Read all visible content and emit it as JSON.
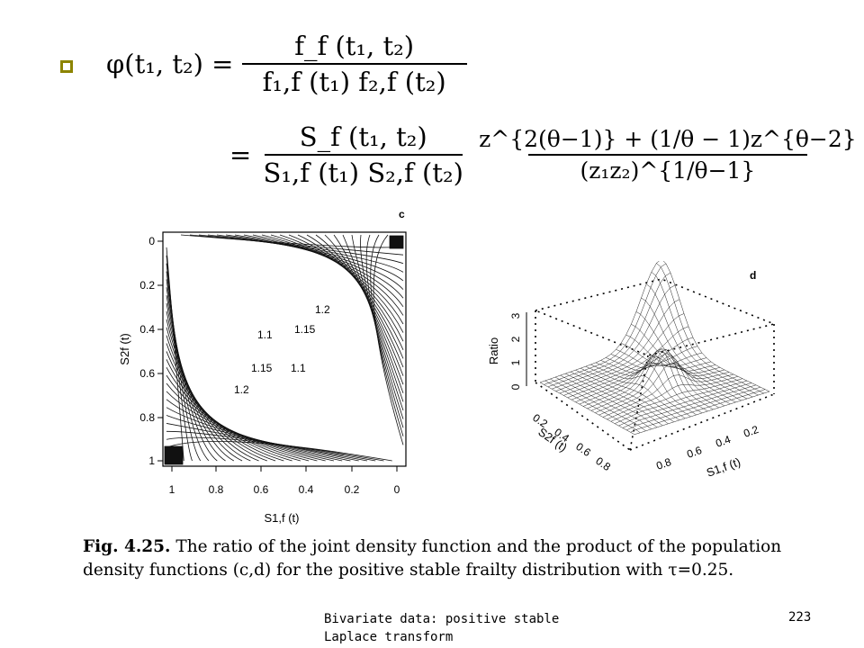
{
  "formula": {
    "lhs": "φ(t₁, t₂) =",
    "line1_num": "f_f (t₁, t₂)",
    "line1_den": "f₁,f (t₁) f₂,f (t₂)",
    "eq2": "=",
    "line2_num": "S_f (t₁, t₂)",
    "line2_den": "S₁,f (t₁) S₂,f (t₂)",
    "line2b_num": "z^{2(θ−1)} + (1/θ − 1)z^{θ−2}",
    "line2b_den": "(z₁z₂)^{1/θ−1}"
  },
  "contour_plot": {
    "panel_label": "c",
    "x_axis_label": "S1,f (t)",
    "y_axis_label": "S2f (t)",
    "x_ticks": [
      "1",
      "0.8",
      "0.6",
      "0.4",
      "0.2",
      "0"
    ],
    "y_ticks": [
      "0",
      "0.2",
      "0.4",
      "0.6",
      "0.8",
      "1"
    ],
    "contour_labels": [
      "1.2",
      "1.15",
      "1.1",
      "1.15",
      "1.1",
      "1.2"
    ]
  },
  "surface_plot": {
    "panel_label": "d",
    "z_axis_label": "Ratio",
    "z_ticks": [
      "0",
      "1",
      "2",
      "3"
    ],
    "s2_axis_label": "S2f (t)",
    "s2_ticks": [
      "0.2",
      "0.4",
      "0.6",
      "0.8"
    ],
    "s1_axis_label": "S1,f (t)",
    "s1_ticks": [
      "0.8",
      "0.6",
      "0.4",
      "0.2"
    ]
  },
  "caption": {
    "label": "Fig. 4.25.",
    "text": "The ratio of the joint density function and the product of the population density functions (c,d) for the positive stable frailty distribution with τ=0.25."
  },
  "footer": {
    "line1": "Bivariate data: positive stable",
    "line2": "Laplace transform",
    "page_number": "223"
  }
}
